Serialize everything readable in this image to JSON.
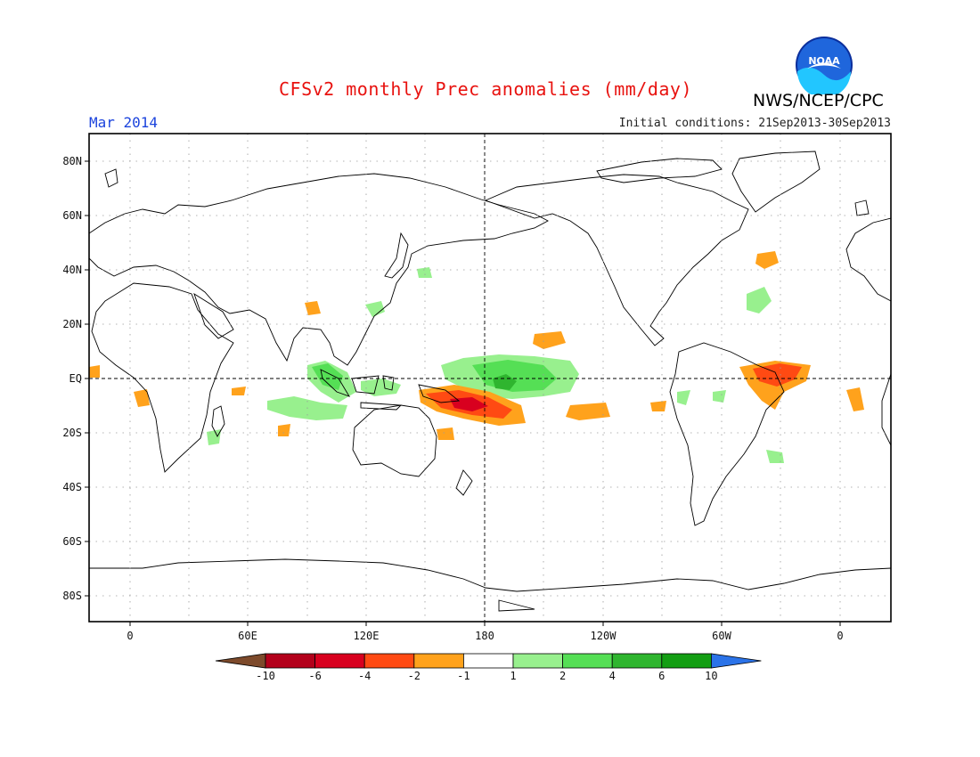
{
  "header": {
    "title": "CFSv2 monthly Prec anomalies (mm/day)",
    "agency": "NWS/NCEP/CPC",
    "logo_text": "NOAA",
    "period": "Mar 2014",
    "initial_conditions": "Initial conditions: 21Sep2013-30Sep2013"
  },
  "map": {
    "projection": "equirectangular",
    "central_longitude": 180,
    "lat_range": [
      -90,
      90
    ],
    "lat_labels": [
      "80N",
      "60N",
      "40N",
      "20N",
      "EQ",
      "20S",
      "40S",
      "60S",
      "80S"
    ],
    "lon_labels": [
      "0",
      "60E",
      "120E",
      "180",
      "120W",
      "60W",
      "0"
    ],
    "gridlines": "dotted",
    "equator_and_dateline": "dashed"
  },
  "colorbar": {
    "labels": [
      "-10",
      "-6",
      "-4",
      "-2",
      "-1",
      "1",
      "2",
      "4",
      "6",
      "10"
    ],
    "colors": [
      "#7d4a2b",
      "#b3001b",
      "#d8001f",
      "#ff4a13",
      "#ffa21c",
      "#ffffff",
      "#98f08e",
      "#55df55",
      "#2fb52f",
      "#139e13",
      "#2b73e8"
    ]
  }
}
